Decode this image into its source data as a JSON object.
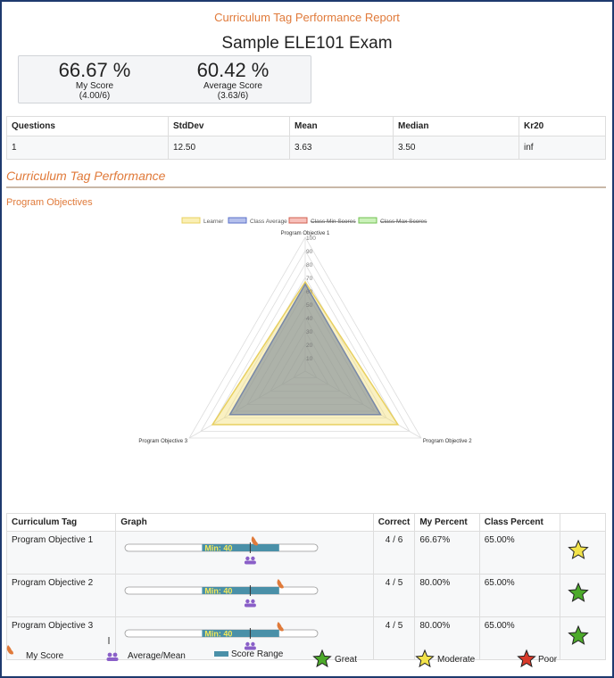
{
  "report_title": "Curriculum Tag Performance Report",
  "exam_title": "Sample ELE101 Exam",
  "my_score": {
    "pct": "66.67 %",
    "label": "My Score",
    "raw": "(4.00/6)"
  },
  "avg_score": {
    "pct": "60.42 %",
    "label": "Average Score",
    "raw": "(3.63/6)"
  },
  "stats": {
    "headers": [
      "Questions",
      "StdDev",
      "Mean",
      "Median",
      "Kr20"
    ],
    "row": [
      "1",
      "12.50",
      "3.63",
      "3.50",
      "inf"
    ]
  },
  "section_title": "Curriculum Tag Performance",
  "sub_title": "Program Objectives",
  "chart_data": {
    "type": "radar",
    "axes": [
      "Program Objective 1",
      "Program Objective 2",
      "Program Objective 3"
    ],
    "r_ticks": [
      "10",
      "20",
      "30",
      "40",
      "50",
      "60",
      "70",
      "80",
      "90",
      "100"
    ],
    "rlim": [
      0,
      100
    ],
    "legend": [
      "Learner",
      "Class Average",
      "Class Min Scores",
      "Class Max Scores"
    ],
    "series": [
      {
        "name": "Learner",
        "values": [
          66.67,
          80,
          80
        ],
        "color": "#f5e6a0"
      },
      {
        "name": "Class Average",
        "values": [
          65,
          65,
          65
        ],
        "color": "#9aa6b8"
      }
    ]
  },
  "tags": {
    "headers": [
      "Curriculum Tag",
      "Graph",
      "Correct",
      "My Percent",
      "Class Percent",
      ""
    ],
    "rows": [
      {
        "tag": "Program Objective 1",
        "min_label": "Min: 40",
        "correct": "4 / 6",
        "my_percent": "66.67%",
        "class_percent": "65.00%",
        "my_score": 66.67,
        "average": 65,
        "range": [
          40,
          80
        ],
        "rating": "moderate"
      },
      {
        "tag": "Program Objective 2",
        "min_label": "Min: 40",
        "correct": "4 / 5",
        "my_percent": "80.00%",
        "class_percent": "65.00%",
        "my_score": 80,
        "average": 65,
        "range": [
          40,
          80
        ],
        "rating": "great"
      },
      {
        "tag": "Program Objective 3",
        "min_label": "Min: 40",
        "correct": "4 / 5",
        "my_percent": "80.00%",
        "class_percent": "65.00%",
        "my_score": 80,
        "average": 65,
        "range": [
          40,
          80
        ],
        "rating": "great"
      }
    ]
  },
  "legend": {
    "my_score": "My Score",
    "average": "Average/Mean",
    "range": "Score Range",
    "great": "Great",
    "moderate": "Moderate",
    "poor": "Poor"
  },
  "colors": {
    "accent": "#e07a3a",
    "great": "#4caa2a",
    "moderate": "#f2e34a",
    "poor": "#d83a2a",
    "range": "#4a90a8",
    "avg_icon": "#8a5fc8"
  }
}
